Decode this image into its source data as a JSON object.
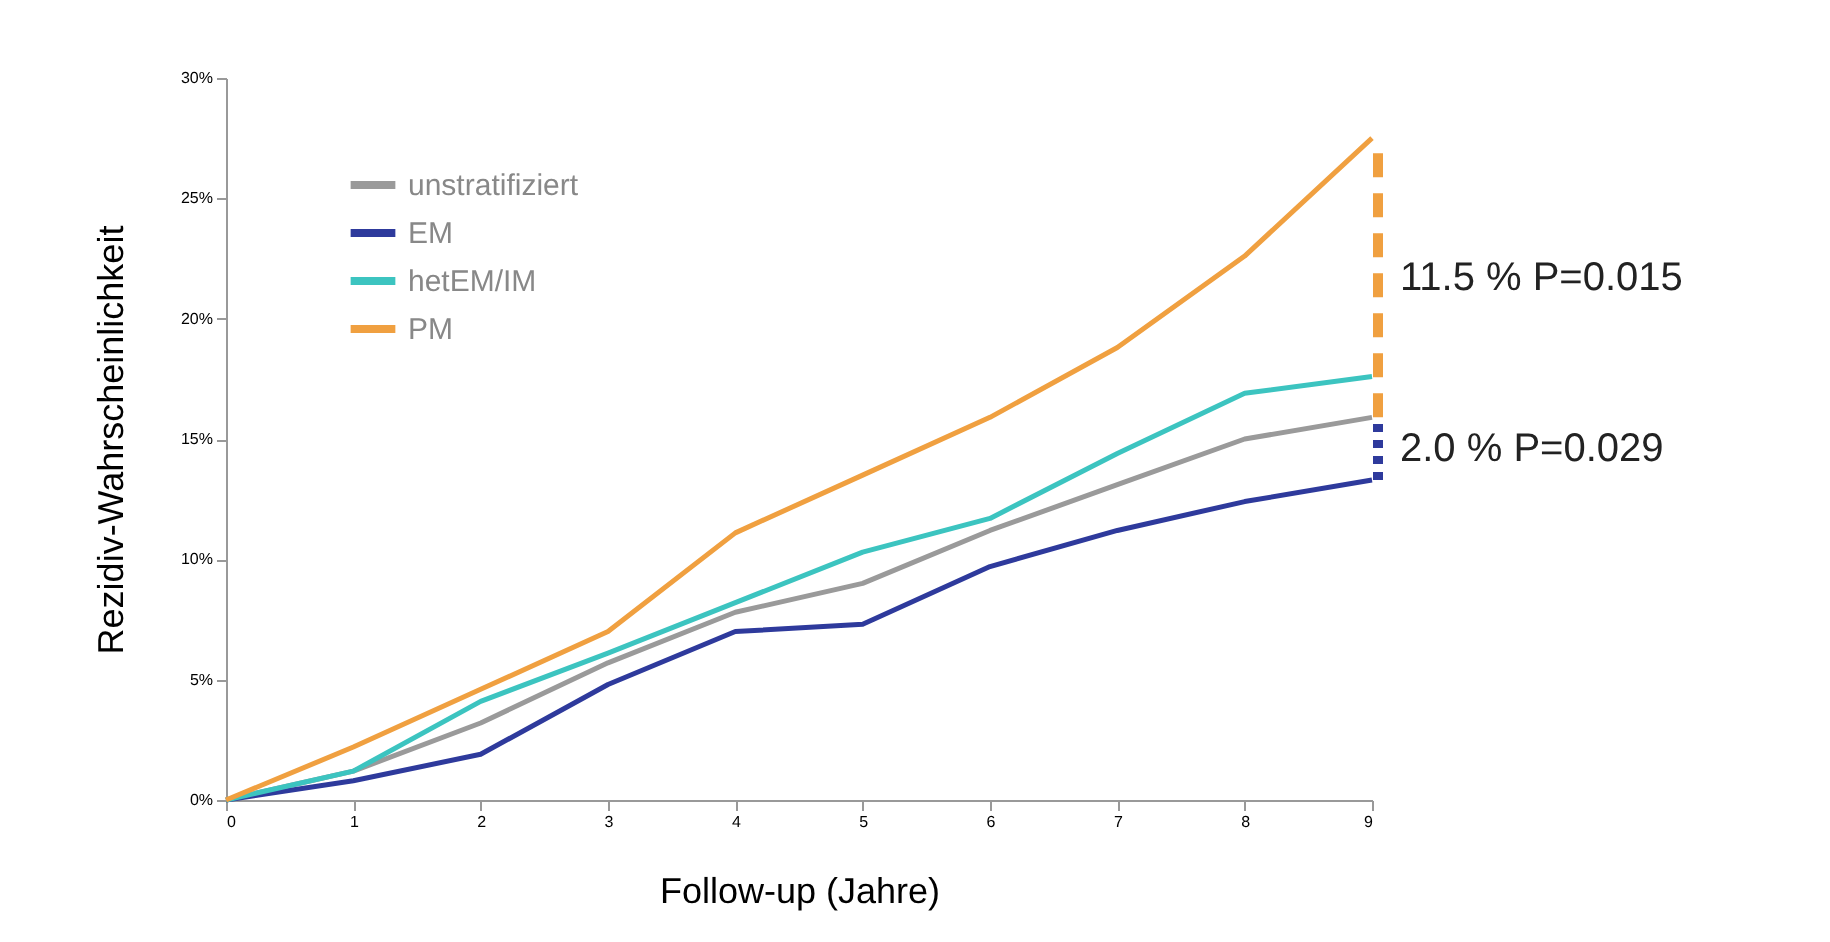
{
  "chart_data": {
    "type": "line",
    "xlabel": "Follow-up (Jahre)",
    "ylabel": "Rezidiv-Wahrscheinlichkeit",
    "x": [
      0,
      1,
      2,
      3,
      4,
      5,
      6,
      7,
      8,
      9
    ],
    "series": [
      {
        "name": "unstratifiziert",
        "color": "#9a9a9a",
        "values": [
          0,
          1.2,
          3.2,
          5.7,
          7.8,
          9.0,
          11.2,
          13.1,
          15.0,
          15.9
        ]
      },
      {
        "name": "EM",
        "color": "#2e3a9c",
        "values": [
          0,
          0.8,
          1.9,
          4.8,
          7.0,
          7.3,
          9.7,
          11.2,
          12.4,
          13.3
        ]
      },
      {
        "name": "hetEM/IM",
        "color": "#3cc4c0",
        "values": [
          0,
          1.2,
          4.1,
          6.1,
          8.2,
          10.3,
          11.7,
          14.4,
          16.9,
          17.6
        ]
      },
      {
        "name": "PM",
        "color": "#f0a040",
        "values": [
          0,
          2.2,
          4.6,
          7.0,
          11.1,
          13.5,
          15.9,
          18.8,
          22.6,
          27.5
        ]
      }
    ],
    "xlim": [
      0,
      9
    ],
    "xticks": [
      0,
      1,
      2,
      3,
      4,
      5,
      6,
      7,
      8,
      9
    ],
    "ylim": [
      0,
      30
    ],
    "yticks": [
      {
        "value": 0,
        "label": "0%"
      },
      {
        "value": 5,
        "label": "5%"
      },
      {
        "value": 10,
        "label": "10%"
      },
      {
        "value": 15,
        "label": "15%"
      },
      {
        "value": 20,
        "label": "20%"
      },
      {
        "value": 25,
        "label": "25%"
      },
      {
        "value": 30,
        "label": "30%"
      }
    ],
    "annotations": [
      "11.5 %  P=0.015",
      "2.0 %  P=0.029"
    ],
    "legend": "top left",
    "grid": false,
    "marker": "none",
    "line_style": "solid"
  }
}
